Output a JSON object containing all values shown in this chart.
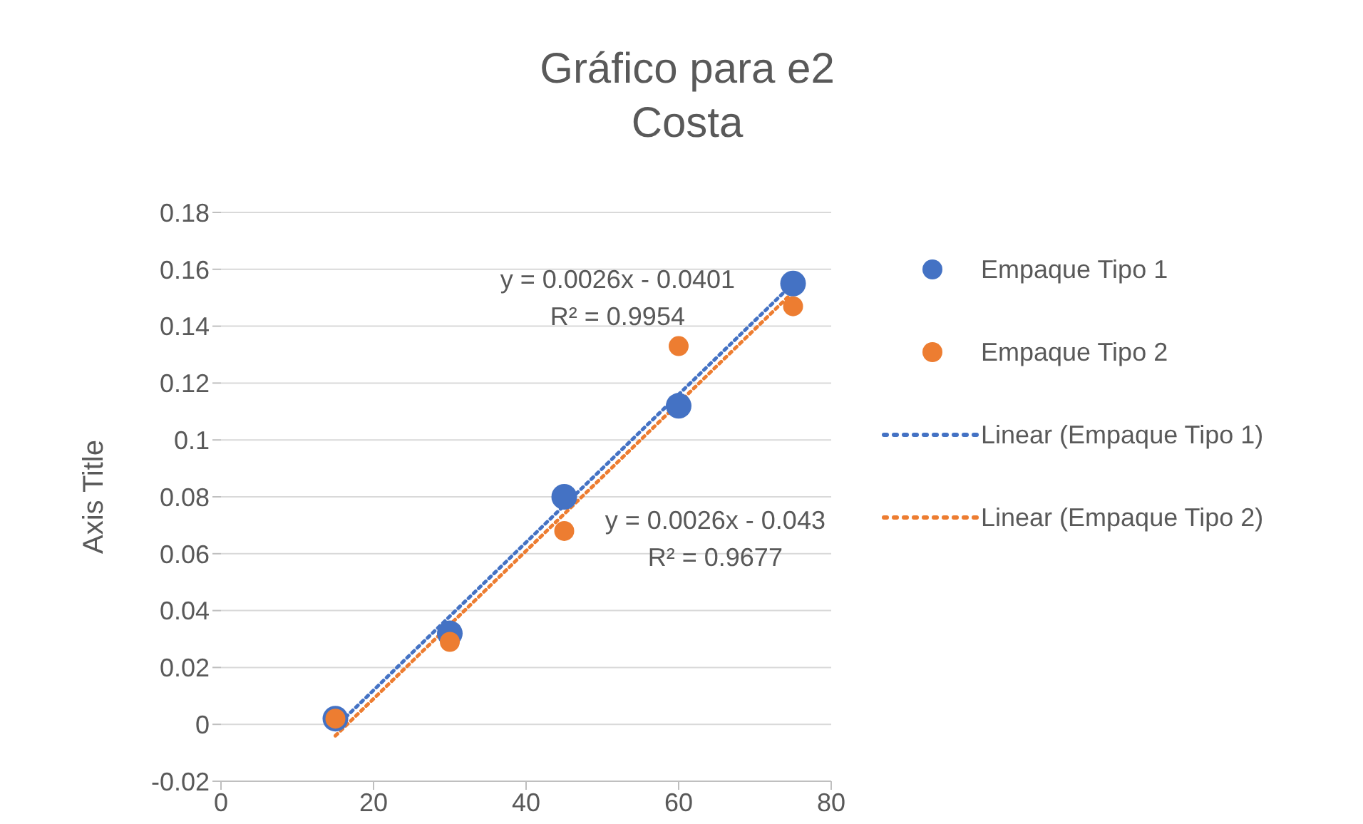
{
  "chart_data": {
    "type": "scatter",
    "title": "Gráfico para e2 Costa",
    "ylabel": "Axis Title",
    "xlim": [
      0,
      80
    ],
    "xticks": [
      0,
      20,
      40,
      60,
      80
    ],
    "ylim": [
      -0.02,
      0.18
    ],
    "yticks": [
      -0.02,
      0,
      0.02,
      0.04,
      0.06,
      0.08,
      0.1,
      0.12,
      0.14,
      0.16,
      0.18
    ],
    "grid": "y",
    "legend": "right",
    "marker": "circle",
    "series": [
      {
        "name": "Empaque Tipo 1",
        "color": "#4472c4",
        "x": [
          15,
          30,
          45,
          60,
          75
        ],
        "values": [
          0.002,
          0.032,
          0.08,
          0.112,
          0.155
        ]
      },
      {
        "name": "Empaque Tipo 2",
        "color": "#ed7d31",
        "x": [
          15,
          30,
          45,
          60,
          75
        ],
        "values": [
          0.002,
          0.029,
          0.068,
          0.133,
          0.147
        ]
      },
      {
        "name": "Linear (Empaque Tipo 1)",
        "type": "line",
        "line_style": "dotted",
        "marker": "none",
        "color": "#4472c4",
        "x": [
          15,
          75
        ],
        "values": [
          -0.001,
          0.155
        ]
      },
      {
        "name": "Linear (Empaque Tipo 2)",
        "type": "line",
        "line_style": "dotted",
        "marker": "none",
        "color": "#ed7d31",
        "x": [
          15,
          75
        ],
        "values": [
          -0.004,
          0.152
        ]
      }
    ],
    "annotations": [
      "y = 0.0026x - 0.0401\nR² = 0.9954",
      "y = 0.0026x - 0.043\nR² = 0.9677"
    ]
  }
}
